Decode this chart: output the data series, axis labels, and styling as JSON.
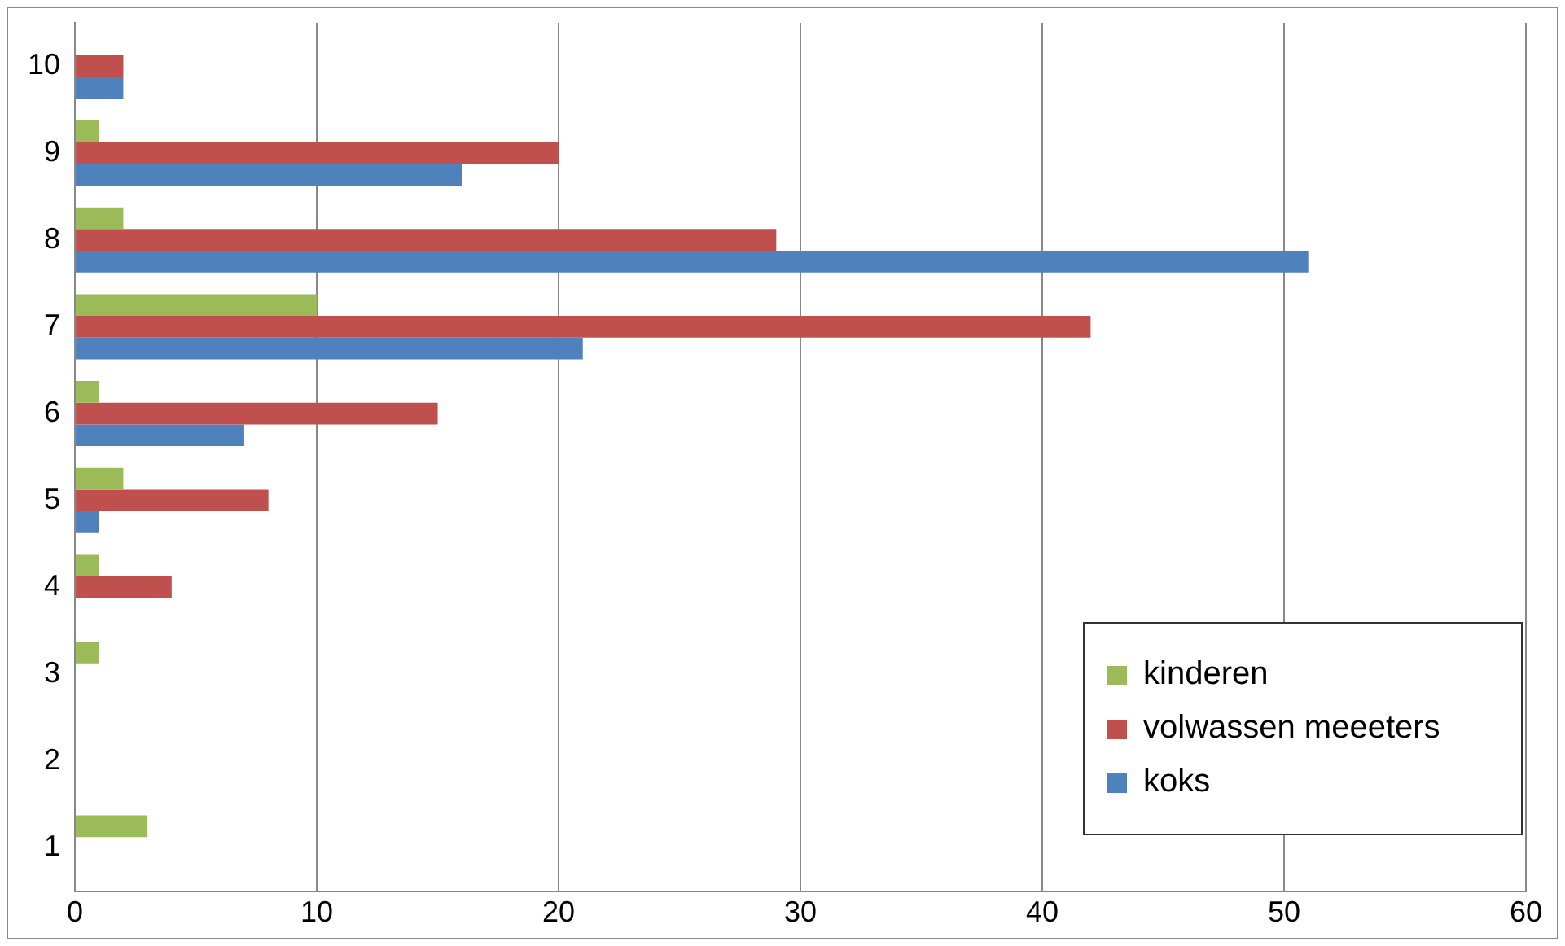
{
  "chart_data": {
    "type": "bar",
    "orientation": "horizontal",
    "categories": [
      "10",
      "9",
      "8",
      "7",
      "6",
      "5",
      "4",
      "3",
      "2",
      "1"
    ],
    "series": [
      {
        "name": "kinderen",
        "color": "#9bbb59",
        "values": [
          0,
          1,
          2,
          10,
          1,
          2,
          1,
          1,
          0,
          3
        ]
      },
      {
        "name": "volwassen meeeters",
        "color": "#c0504d",
        "values": [
          2,
          20,
          29,
          42,
          15,
          8,
          4,
          0,
          0,
          0
        ]
      },
      {
        "name": "koks",
        "color": "#4f81bd",
        "values": [
          2,
          16,
          51,
          21,
          7,
          1,
          0,
          0,
          0,
          0
        ]
      }
    ],
    "xlim": [
      0,
      60
    ],
    "xticks": [
      0,
      10,
      20,
      30,
      40,
      50,
      60
    ],
    "grid": "x",
    "legend": "bottom right"
  }
}
